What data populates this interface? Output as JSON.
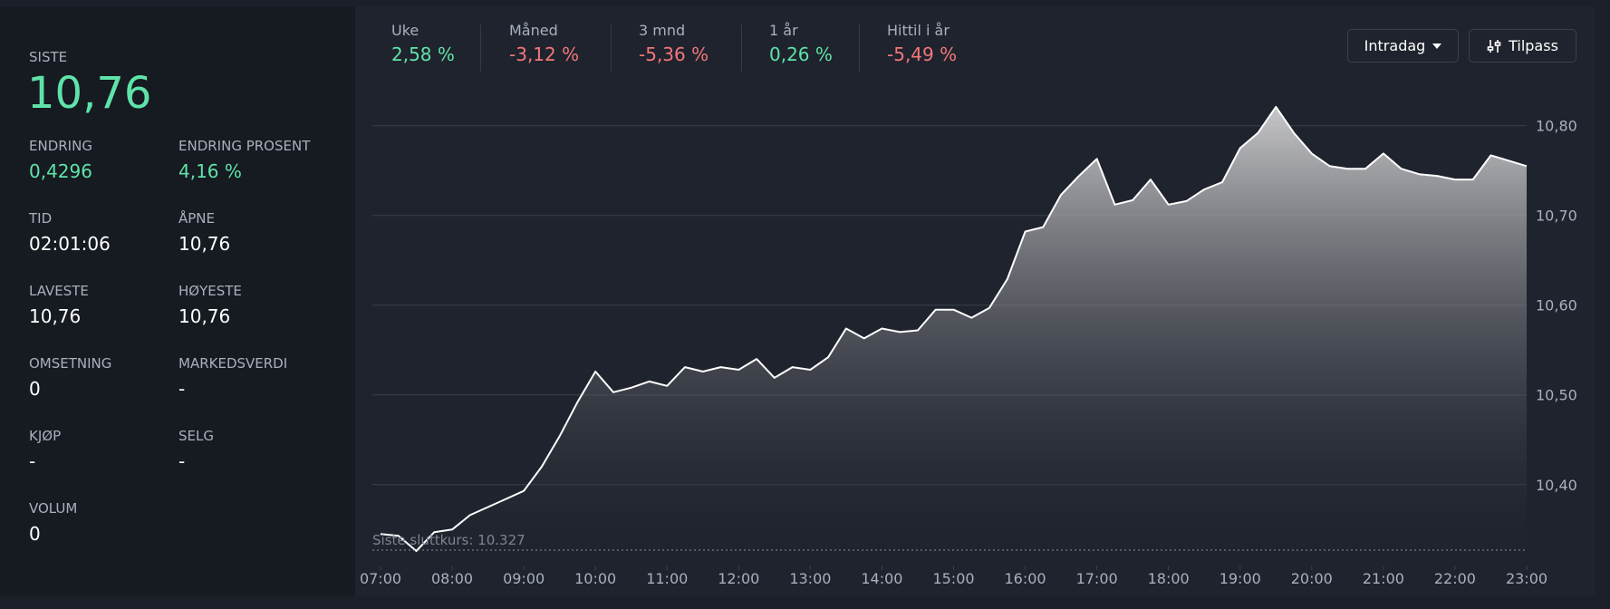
{
  "stats": {
    "last": {
      "label": "SISTE",
      "value": "10,76",
      "color": "#5fe3a8"
    },
    "fields": [
      {
        "label": "ENDRING",
        "value": "0,4296",
        "color": "#5fe3a8"
      },
      {
        "label": "ENDRING PROSENT",
        "value": "4,16 %",
        "color": "#5fe3a8"
      },
      {
        "label": "TID",
        "value": "02:01:06",
        "color": "#ffffff"
      },
      {
        "label": "ÅPNE",
        "value": "10,76",
        "color": "#ffffff"
      },
      {
        "label": "LAVESTE",
        "value": "10,76",
        "color": "#ffffff"
      },
      {
        "label": "HØYESTE",
        "value": "10,76",
        "color": "#ffffff"
      },
      {
        "label": "OMSETNING",
        "value": "0",
        "color": "#ffffff"
      },
      {
        "label": "MARKEDSVERDI",
        "value": "-",
        "color": "#ffffff"
      },
      {
        "label": "KJØP",
        "value": "-",
        "color": "#ffffff"
      },
      {
        "label": "SELG",
        "value": "-",
        "color": "#ffffff"
      },
      {
        "label": "VOLUM",
        "value": "0",
        "color": "#ffffff"
      }
    ]
  },
  "periods": [
    {
      "label": "Uke",
      "value": "2,58 %",
      "color": "#5fe3a8"
    },
    {
      "label": "Måned",
      "value": "-3,12 %",
      "color": "#f2777b"
    },
    {
      "label": "3 mnd",
      "value": "-5,36 %",
      "color": "#f2777b"
    },
    {
      "label": "1 år",
      "value": "0,26 %",
      "color": "#5fe3a8"
    },
    {
      "label": "Hittil i år",
      "value": "-5,49 %",
      "color": "#f2777b"
    }
  ],
  "buttons": {
    "range": "Intradag",
    "customize": "Tilpass"
  },
  "chart_data": {
    "type": "area",
    "x": [
      "07:00",
      "07:15",
      "07:30",
      "07:45",
      "08:00",
      "08:15",
      "08:30",
      "08:45",
      "09:00",
      "09:15",
      "09:30",
      "09:45",
      "10:00",
      "10:15",
      "10:30",
      "10:45",
      "11:00",
      "11:15",
      "11:30",
      "11:45",
      "12:00",
      "12:15",
      "12:30",
      "12:45",
      "13:00",
      "13:15",
      "13:30",
      "13:45",
      "14:00",
      "14:15",
      "14:30",
      "14:45",
      "15:00",
      "15:15",
      "15:30",
      "15:45",
      "16:00",
      "16:15",
      "16:30",
      "16:45",
      "17:00",
      "17:15",
      "17:30",
      "17:45",
      "18:00",
      "18:15",
      "18:30",
      "18:45",
      "19:00",
      "19:15",
      "19:30",
      "19:45",
      "20:00",
      "20:15",
      "20:30",
      "20:45",
      "21:00",
      "21:15",
      "21:30",
      "21:45",
      "22:00",
      "22:15",
      "22:30",
      "22:45",
      "23:00"
    ],
    "values": [
      10.345,
      10.343,
      10.326,
      10.347,
      10.35,
      10.366,
      10.375,
      10.384,
      10.393,
      10.42,
      10.454,
      10.492,
      10.526,
      10.503,
      10.508,
      10.515,
      10.51,
      10.531,
      10.526,
      10.531,
      10.528,
      10.54,
      10.519,
      10.531,
      10.528,
      10.542,
      10.574,
      10.563,
      10.574,
      10.57,
      10.572,
      10.595,
      10.595,
      10.586,
      10.597,
      10.629,
      10.682,
      10.687,
      10.723,
      10.744,
      10.763,
      10.712,
      10.717,
      10.74,
      10.712,
      10.716,
      10.729,
      10.737,
      10.775,
      10.792,
      10.821,
      10.792,
      10.769,
      10.755,
      10.752,
      10.752,
      10.769,
      10.752,
      10.746,
      10.744,
      10.74,
      10.74,
      10.767,
      10.761,
      10.755
    ],
    "color": "#ffffff",
    "xlim": [
      "07:00",
      "23:00"
    ],
    "xticks": [
      "07:00",
      "08:00",
      "09:00",
      "10:00",
      "11:00",
      "12:00",
      "13:00",
      "14:00",
      "15:00",
      "16:00",
      "17:00",
      "18:00",
      "19:00",
      "20:00",
      "21:00",
      "22:00",
      "23:00"
    ],
    "ylim": [
      10.322,
      10.831
    ],
    "yticks": [
      {
        "value": 10.4,
        "label": "10,40"
      },
      {
        "value": 10.5,
        "label": "10,50"
      },
      {
        "value": 10.6,
        "label": "10,60"
      },
      {
        "value": 10.7,
        "label": "10,70"
      },
      {
        "value": 10.8,
        "label": "10,80"
      }
    ],
    "grid": true,
    "reference_line": {
      "value": 10.327,
      "label": "Siste sluttkurs: 10.327"
    }
  }
}
